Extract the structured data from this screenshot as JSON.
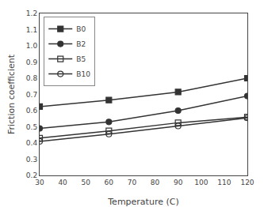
{
  "chart_data": {
    "type": "line",
    "xlabel": "Temperature (C)",
    "ylabel": "Friction coefficient",
    "xlim": [
      30,
      120
    ],
    "ylim": [
      0.2,
      1.2
    ],
    "xticks": [
      30,
      40,
      50,
      60,
      70,
      80,
      90,
      100,
      110,
      120
    ],
    "yticks": [
      0.2,
      0.3,
      0.4,
      0.5,
      0.6,
      0.7,
      0.8,
      0.9,
      {
        "value": 1,
        "label": "1.0"
      },
      1.1,
      1.2
    ],
    "x": [
      30,
      60,
      90,
      120
    ],
    "series": [
      {
        "name": "B0",
        "color": "#333333",
        "marker": "square",
        "values": [
          0.625,
          0.665,
          0.715,
          0.8
        ]
      },
      {
        "name": "B2",
        "color": "#333333",
        "marker": "circle",
        "values": [
          0.49,
          0.53,
          0.6,
          0.69
        ]
      },
      {
        "name": "B5",
        "color": "#333333",
        "marker": "square-open",
        "values": [
          0.43,
          0.475,
          0.525,
          0.56
        ]
      },
      {
        "name": "B10",
        "color": "#333333",
        "marker": "circle-open",
        "values": [
          0.41,
          0.455,
          0.505,
          0.555
        ]
      }
    ],
    "legend": "upper left",
    "grid": false
  }
}
